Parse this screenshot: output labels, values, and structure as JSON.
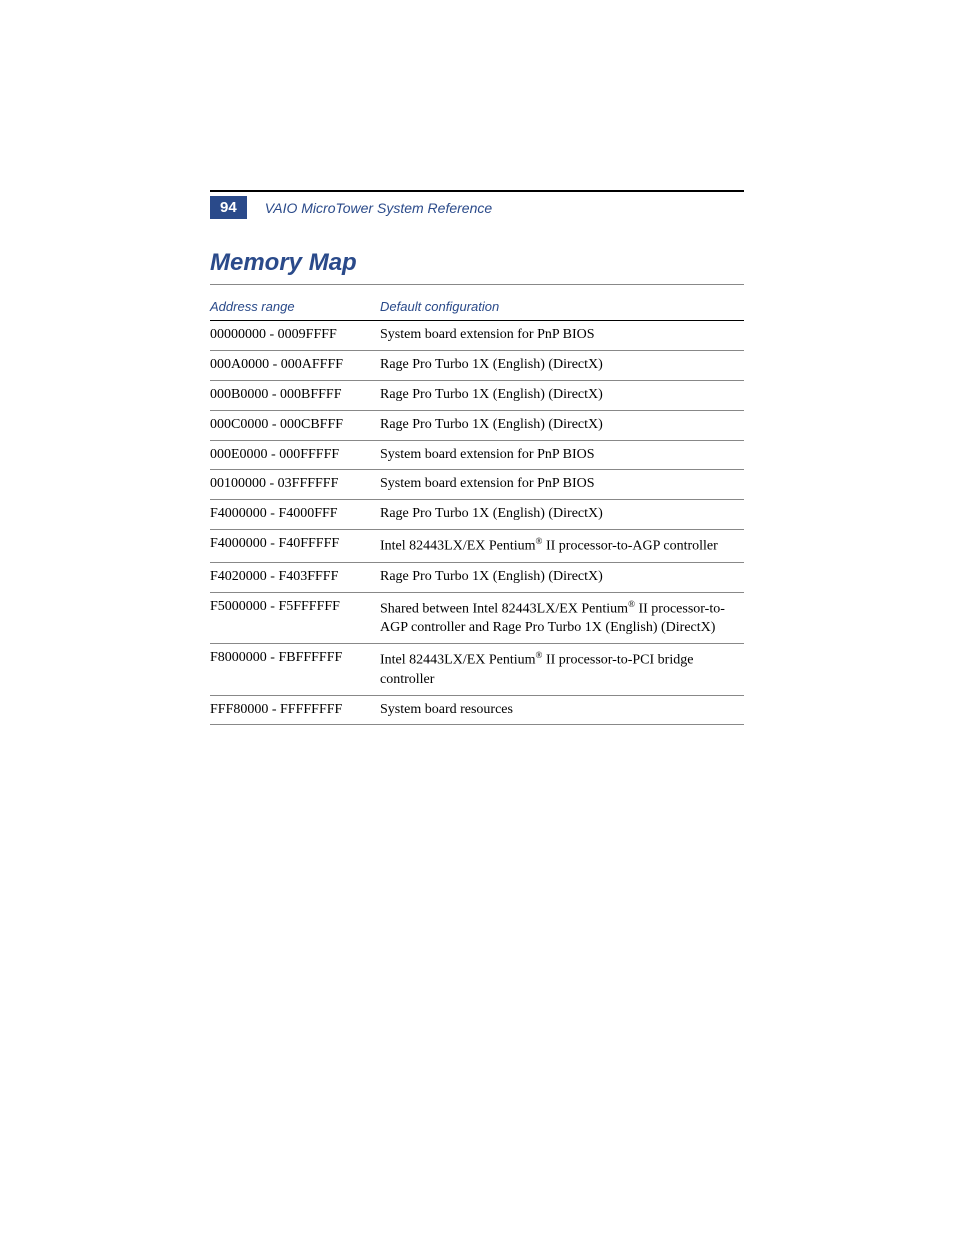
{
  "header": {
    "page_number": "94",
    "doc_title": "VAIO MicroTower System Reference"
  },
  "section": {
    "title": "Memory Map"
  },
  "table": {
    "columns": [
      "Address range",
      "Default configuration"
    ],
    "rows": [
      {
        "addr": "00000000 - 0009FFFF",
        "desc": "System board extension for PnP BIOS"
      },
      {
        "addr": "000A0000 - 000AFFFF",
        "desc": "Rage Pro Turbo 1X (English) (DirectX)"
      },
      {
        "addr": "000B0000 - 000BFFFF",
        "desc": "Rage Pro Turbo 1X (English) (DirectX)"
      },
      {
        "addr": "000C0000 - 000CBFFF",
        "desc": "Rage Pro Turbo 1X (English) (DirectX)"
      },
      {
        "addr": "000E0000 - 000FFFFF",
        "desc": "System board extension for PnP BIOS"
      },
      {
        "addr": "00100000 - 03FFFFFF",
        "desc": "System board extension for PnP BIOS"
      },
      {
        "addr": "F4000000 - F4000FFF",
        "desc": "Rage Pro Turbo 1X (English) (DirectX)"
      },
      {
        "addr": "F4000000 - F40FFFFF",
        "desc_html": "Intel 82443LX/EX Pentium<sup>®</sup> II processor-to-AGP controller"
      },
      {
        "addr": "F4020000 - F403FFFF",
        "desc": "Rage Pro Turbo 1X (English) (DirectX)"
      },
      {
        "addr": "F5000000 - F5FFFFFF",
        "desc_html": "Shared between Intel 82443LX/EX Pentium<sup>®</sup> II processor-to-AGP controller and Rage Pro Turbo 1X (English) (DirectX)"
      },
      {
        "addr": "F8000000 - FBFFFFFF",
        "desc_html": "Intel 82443LX/EX Pentium<sup>®</sup> II processor-to-PCI bridge controller"
      },
      {
        "addr": "FFF80000 - FFFFFFFF",
        "desc": "System board resources"
      }
    ]
  },
  "colors": {
    "accent": "#2a4a8a",
    "text": "#000000",
    "bg": "#ffffff",
    "rule_dark": "#000000",
    "rule_light": "#888888"
  }
}
